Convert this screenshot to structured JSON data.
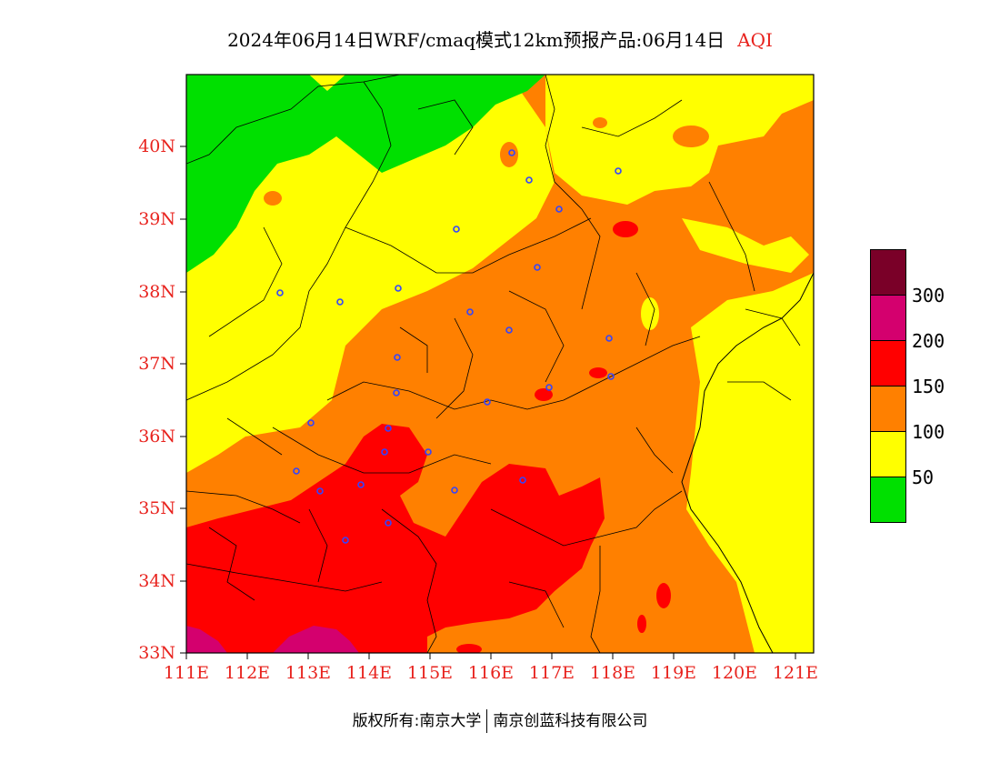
{
  "title": {
    "text": "2024年06月14日WRF/cmaq模式12km预报产品:06月14日",
    "highlight": "AQI"
  },
  "axes": {
    "lat_labels": [
      "40N",
      "39N",
      "38N",
      "37N",
      "36N",
      "35N",
      "34N",
      "33N"
    ],
    "lon_labels": [
      "111E",
      "112E",
      "113E",
      "114E",
      "115E",
      "116E",
      "117E",
      "118E",
      "119E",
      "120E",
      "121E"
    ],
    "lat_range": [
      33,
      41
    ],
    "lon_range": [
      111,
      121.3
    ]
  },
  "legend": {
    "labels": [
      "300",
      "200",
      "150",
      "100",
      "50"
    ],
    "colors": [
      "#7a0028",
      "#d4006e",
      "#ff0000",
      "#ff8000",
      "#ffff00",
      "#00e000"
    ]
  },
  "colors": {
    "good": "#00e000",
    "moderate": "#ffff00",
    "light": "#ff8000",
    "medium": "#ff0000",
    "heavy": "#d4006e",
    "label_red": "#e8231e",
    "city_marker": "#3344ff"
  },
  "footer": {
    "left": "版权所有:南京大学",
    "right": "南京创蓝科技有限公司"
  }
}
